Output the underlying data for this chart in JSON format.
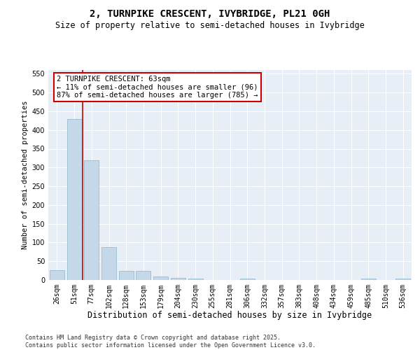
{
  "title1": "2, TURNPIKE CRESCENT, IVYBRIDGE, PL21 0GH",
  "title2": "Size of property relative to semi-detached houses in Ivybridge",
  "xlabel": "Distribution of semi-detached houses by size in Ivybridge",
  "ylabel": "Number of semi-detached properties",
  "categories": [
    "26sqm",
    "51sqm",
    "77sqm",
    "102sqm",
    "128sqm",
    "153sqm",
    "179sqm",
    "204sqm",
    "230sqm",
    "255sqm",
    "281sqm",
    "306sqm",
    "332sqm",
    "357sqm",
    "383sqm",
    "408sqm",
    "434sqm",
    "459sqm",
    "485sqm",
    "510sqm",
    "536sqm"
  ],
  "values": [
    27,
    430,
    320,
    87,
    25,
    25,
    10,
    5,
    4,
    0,
    0,
    3,
    0,
    0,
    0,
    0,
    0,
    0,
    3,
    0,
    4
  ],
  "bar_color": "#c5d8ea",
  "bar_edge_color": "#8ab4cc",
  "red_line_x": 1.5,
  "annotation_text_line1": "2 TURNPIKE CRESCENT: 63sqm",
  "annotation_text_line2": "← 11% of semi-detached houses are smaller (96)",
  "annotation_text_line3": "87% of semi-detached houses are larger (785) →",
  "red_line_color": "#cc0000",
  "ylim": [
    0,
    560
  ],
  "yticks": [
    0,
    50,
    100,
    150,
    200,
    250,
    300,
    350,
    400,
    450,
    500,
    550
  ],
  "footer": "Contains HM Land Registry data © Crown copyright and database right 2025.\nContains public sector information licensed under the Open Government Licence v3.0.",
  "title1_fontsize": 10,
  "title2_fontsize": 8.5,
  "xlabel_fontsize": 8.5,
  "ylabel_fontsize": 7.5,
  "tick_fontsize": 7,
  "annot_fontsize": 7.5,
  "footer_fontsize": 6,
  "bg_color": "#e8eef6"
}
